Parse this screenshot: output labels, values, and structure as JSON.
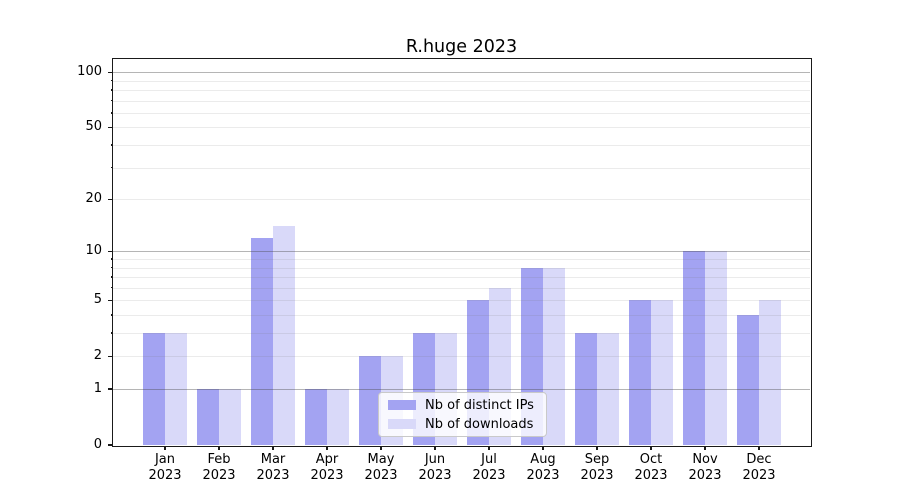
{
  "title": "R.huge 2023",
  "chart_data": {
    "type": "bar",
    "title": "R.huge 2023",
    "x_labels": [
      {
        "month": "Jan",
        "year": "2023"
      },
      {
        "month": "Feb",
        "year": "2023"
      },
      {
        "month": "Mar",
        "year": "2023"
      },
      {
        "month": "Apr",
        "year": "2023"
      },
      {
        "month": "May",
        "year": "2023"
      },
      {
        "month": "Jun",
        "year": "2023"
      },
      {
        "month": "Jul",
        "year": "2023"
      },
      {
        "month": "Aug",
        "year": "2023"
      },
      {
        "month": "Sep",
        "year": "2023"
      },
      {
        "month": "Oct",
        "year": "2023"
      },
      {
        "month": "Nov",
        "year": "2023"
      },
      {
        "month": "Dec",
        "year": "2023"
      }
    ],
    "series": [
      {
        "name": "Nb of distinct IPs",
        "color": "#a3a3f2",
        "values": [
          3,
          1,
          12,
          1,
          2,
          3,
          5,
          8,
          3,
          5,
          10,
          4
        ]
      },
      {
        "name": "Nb of downloads",
        "color": "#d9d9f9",
        "values": [
          3,
          1,
          14,
          1,
          2,
          3,
          6,
          8,
          3,
          5,
          10,
          5
        ]
      }
    ],
    "y_axis": {
      "scale": "log1p",
      "ylim": [
        0,
        118
      ],
      "tick_labels": [
        0,
        1,
        2,
        5,
        10,
        20,
        50,
        100
      ],
      "decade_gridlines": [
        1,
        10,
        100
      ],
      "minor_gridlines": [
        2,
        3,
        4,
        5,
        6,
        7,
        8,
        9,
        20,
        30,
        40,
        50,
        60,
        70,
        80,
        90
      ],
      "minor_ticks": [
        3,
        4,
        6,
        7,
        8,
        9,
        30,
        40,
        60,
        70,
        80,
        90
      ]
    },
    "legend": {
      "position": "lower center"
    },
    "grid": "on",
    "colors": {
      "spine": "#1a1a1a",
      "grid_major": "rgba(70,70,70,0.40)",
      "grid_minor": "rgba(110,110,110,0.14)"
    }
  }
}
